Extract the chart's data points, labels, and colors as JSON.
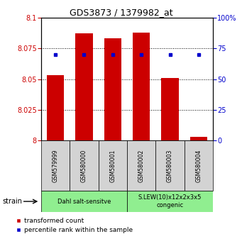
{
  "title": "GDS3873 / 1379982_at",
  "samples": [
    "GSM579999",
    "GSM580000",
    "GSM580001",
    "GSM580002",
    "GSM580003",
    "GSM580004"
  ],
  "transformed_counts": [
    8.053,
    8.087,
    8.083,
    8.088,
    8.051,
    8.003
  ],
  "percentile_ranks": [
    70,
    70,
    70,
    70,
    70,
    70
  ],
  "ylim_left": [
    8.0,
    8.1
  ],
  "ylim_right": [
    0,
    100
  ],
  "yticks_left": [
    8.0,
    8.025,
    8.05,
    8.075,
    8.1
  ],
  "yticks_right": [
    0,
    25,
    50,
    75,
    100
  ],
  "bar_color": "#cc0000",
  "dot_color": "#0000cc",
  "group1_label": "Dahl salt-sensitve",
  "group2_label": "S.LEW(10)x12x2x3x5\ncongenic",
  "group1_indices": [
    0,
    1,
    2
  ],
  "group2_indices": [
    3,
    4,
    5
  ],
  "group_color": "#90ee90",
  "strain_label": "strain",
  "legend_bar_label": "transformed count",
  "legend_dot_label": "percentile rank within the sample",
  "bar_width": 0.6,
  "base_value": 8.0
}
